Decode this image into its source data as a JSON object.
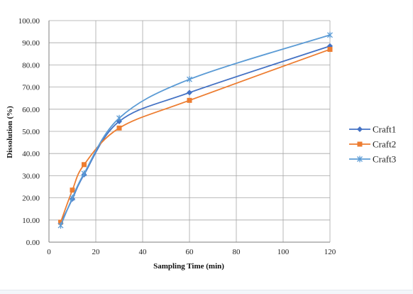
{
  "chart_data": {
    "type": "line",
    "xlabel": "Sampling Time (min)",
    "ylabel": "Dissolution (%)",
    "x_ticks": [
      "0",
      "20",
      "40",
      "60",
      "80",
      "100",
      "120"
    ],
    "y_ticks": [
      "0.00",
      "10.00",
      "20.00",
      "30.00",
      "40.00",
      "50.00",
      "60.00",
      "70.00",
      "80.00",
      "90.00",
      "100.00"
    ],
    "ylim": [
      0,
      100
    ],
    "grid": true,
    "legend_position": "right",
    "x": [
      5,
      10,
      15,
      30,
      60,
      120
    ],
    "series": [
      {
        "name": "Craft1",
        "marker": "diamond",
        "color": "#4472c4",
        "values": [
          8.5,
          19.5,
          30.5,
          54.5,
          67.5,
          88.5
        ]
      },
      {
        "name": "Craft2",
        "marker": "square",
        "color": "#ed7d31",
        "values": [
          9.0,
          23.5,
          35.0,
          51.5,
          64.0,
          87.0
        ]
      },
      {
        "name": "Craft3",
        "marker": "star",
        "color": "#5b9bd5",
        "values": [
          7.5,
          20.0,
          31.0,
          56.0,
          73.5,
          93.5
        ]
      }
    ]
  }
}
